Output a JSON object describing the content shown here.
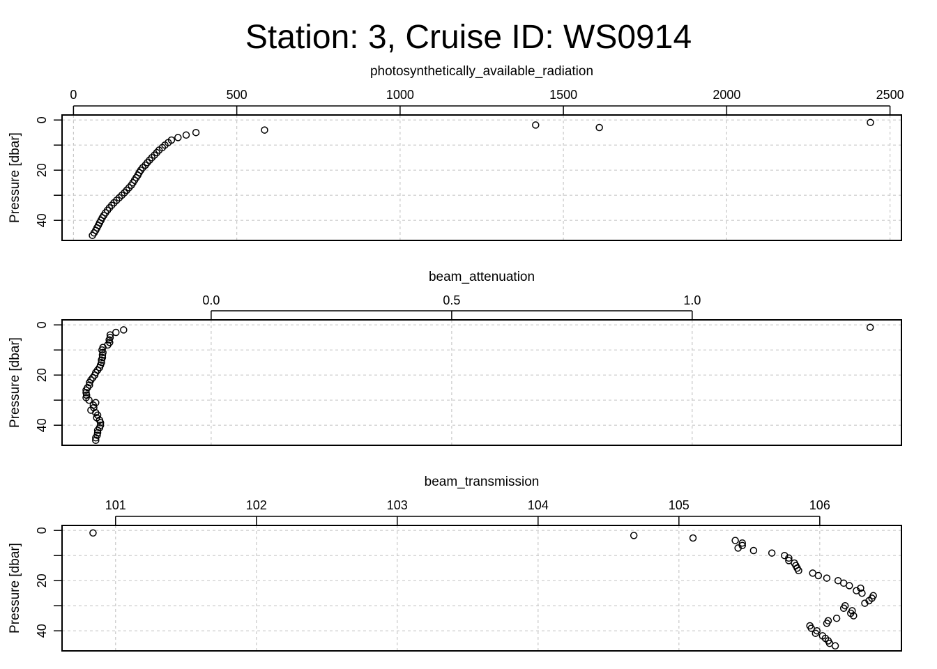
{
  "chart_data": {
    "title": "Station: 3, Cruise ID: WS0914",
    "type": "scatter",
    "panels": [
      {
        "xlabel": "photosynthetically_available_radiation",
        "ylabel": "Pressure [dbar]",
        "xlim": [
          -35,
          2535
        ],
        "ylim": [
          48,
          -2
        ],
        "xticks": [
          0,
          500,
          1000,
          1500,
          2000,
          2500
        ],
        "xtick_labels": [
          "0",
          "500",
          "1000",
          "1500",
          "2000",
          "2500"
        ],
        "xgrid": [
          0,
          500,
          1000,
          1500,
          2000,
          2500
        ],
        "yticks": [
          0,
          10,
          20,
          30,
          40
        ],
        "ytick_labels": [
          "0",
          "",
          "20",
          "",
          "40"
        ],
        "grid": true,
        "points": [
          [
            2440,
            1
          ],
          [
            1415,
            2
          ],
          [
            1610,
            3
          ],
          [
            585,
            4
          ],
          [
            375,
            5
          ],
          [
            345,
            6
          ],
          [
            320,
            7
          ],
          [
            300,
            8
          ],
          [
            290,
            9
          ],
          [
            280,
            10
          ],
          [
            272,
            11
          ],
          [
            262,
            12
          ],
          [
            255,
            13
          ],
          [
            248,
            14
          ],
          [
            240,
            15
          ],
          [
            233,
            16
          ],
          [
            226,
            17
          ],
          [
            220,
            18
          ],
          [
            212,
            19
          ],
          [
            206,
            20
          ],
          [
            201,
            21
          ],
          [
            197,
            22
          ],
          [
            192,
            23
          ],
          [
            187,
            24
          ],
          [
            182,
            25
          ],
          [
            177,
            26
          ],
          [
            170,
            27
          ],
          [
            163,
            28
          ],
          [
            156,
            29
          ],
          [
            148,
            30
          ],
          [
            140,
            31
          ],
          [
            132,
            32
          ],
          [
            124,
            33
          ],
          [
            117,
            34
          ],
          [
            110,
            35
          ],
          [
            104,
            36
          ],
          [
            98,
            37
          ],
          [
            93,
            38
          ],
          [
            88,
            39
          ],
          [
            84,
            40
          ],
          [
            80,
            41
          ],
          [
            76,
            42
          ],
          [
            72,
            43
          ],
          [
            68,
            44
          ],
          [
            63,
            45
          ],
          [
            58,
            46
          ]
        ]
      },
      {
        "xlabel": "beam_attenuation",
        "ylabel": "Pressure [dbar]",
        "xlim": [
          -0.31,
          1.435
        ],
        "ylim": [
          48,
          -2
        ],
        "xticks": [
          0.0,
          0.5,
          1.0
        ],
        "xtick_labels": [
          "0.0",
          "0.5",
          "1.0"
        ],
        "xgrid": [
          0.0,
          0.5,
          1.0
        ],
        "yticks": [
          0,
          10,
          20,
          30,
          40
        ],
        "ytick_labels": [
          "0",
          "",
          "20",
          "",
          "40"
        ],
        "grid": true,
        "points": [
          [
            1.37,
            1
          ],
          [
            -0.182,
            2
          ],
          [
            -0.198,
            3
          ],
          [
            -0.21,
            4
          ],
          [
            -0.21,
            5
          ],
          [
            -0.212,
            6
          ],
          [
            -0.211,
            7
          ],
          [
            -0.215,
            8
          ],
          [
            -0.225,
            9
          ],
          [
            -0.227,
            10
          ],
          [
            -0.225,
            11
          ],
          [
            -0.226,
            12
          ],
          [
            -0.226,
            13
          ],
          [
            -0.228,
            14
          ],
          [
            -0.228,
            15
          ],
          [
            -0.23,
            16
          ],
          [
            -0.232,
            17
          ],
          [
            -0.236,
            18
          ],
          [
            -0.24,
            19
          ],
          [
            -0.242,
            20
          ],
          [
            -0.246,
            21
          ],
          [
            -0.25,
            22
          ],
          [
            -0.253,
            23
          ],
          [
            -0.253,
            24
          ],
          [
            -0.257,
            25
          ],
          [
            -0.26,
            26
          ],
          [
            -0.26,
            27
          ],
          [
            -0.259,
            28
          ],
          [
            -0.26,
            29
          ],
          [
            -0.254,
            30
          ],
          [
            -0.24,
            31
          ],
          [
            -0.245,
            32
          ],
          [
            -0.244,
            33
          ],
          [
            -0.25,
            34
          ],
          [
            -0.24,
            35
          ],
          [
            -0.236,
            36
          ],
          [
            -0.238,
            37
          ],
          [
            -0.232,
            38
          ],
          [
            -0.23,
            39
          ],
          [
            -0.23,
            40
          ],
          [
            -0.232,
            41
          ],
          [
            -0.236,
            42
          ],
          [
            -0.236,
            43
          ],
          [
            -0.237,
            44
          ],
          [
            -0.24,
            45
          ],
          [
            -0.24,
            46
          ]
        ]
      },
      {
        "xlabel": "beam_transmission",
        "ylabel": "Pressure [dbar]",
        "xlim": [
          100.62,
          106.58
        ],
        "ylim": [
          48,
          -2
        ],
        "xticks": [
          101,
          102,
          103,
          104,
          105,
          106
        ],
        "xtick_labels": [
          "101",
          "102",
          "103",
          "104",
          "105",
          "106"
        ],
        "xgrid": [
          101,
          102,
          103,
          104,
          105,
          106
        ],
        "yticks": [
          0,
          10,
          20,
          30,
          40
        ],
        "ytick_labels": [
          "0",
          "",
          "20",
          "",
          "40"
        ],
        "grid": true,
        "points": [
          [
            100.84,
            1
          ],
          [
            104.68,
            2
          ],
          [
            105.1,
            3
          ],
          [
            105.4,
            4
          ],
          [
            105.45,
            5
          ],
          [
            105.45,
            6
          ],
          [
            105.42,
            7
          ],
          [
            105.53,
            8
          ],
          [
            105.66,
            9
          ],
          [
            105.75,
            10
          ],
          [
            105.78,
            11
          ],
          [
            105.78,
            12
          ],
          [
            105.82,
            13
          ],
          [
            105.83,
            14
          ],
          [
            105.84,
            15
          ],
          [
            105.85,
            16
          ],
          [
            105.95,
            17
          ],
          [
            105.99,
            18
          ],
          [
            106.05,
            19
          ],
          [
            106.13,
            20
          ],
          [
            106.17,
            21
          ],
          [
            106.21,
            22
          ],
          [
            106.29,
            23
          ],
          [
            106.26,
            24
          ],
          [
            106.3,
            25
          ],
          [
            106.38,
            26
          ],
          [
            106.37,
            27
          ],
          [
            106.35,
            28
          ],
          [
            106.32,
            29
          ],
          [
            106.18,
            30
          ],
          [
            106.17,
            31
          ],
          [
            106.23,
            32
          ],
          [
            106.22,
            33
          ],
          [
            106.24,
            34
          ],
          [
            106.12,
            35
          ],
          [
            106.06,
            36
          ],
          [
            106.05,
            37
          ],
          [
            105.93,
            38
          ],
          [
            105.94,
            39
          ],
          [
            105.98,
            40
          ],
          [
            105.97,
            41
          ],
          [
            106.02,
            42
          ],
          [
            106.04,
            43
          ],
          [
            106.06,
            44
          ],
          [
            106.07,
            45
          ],
          [
            106.11,
            46
          ]
        ]
      }
    ]
  }
}
